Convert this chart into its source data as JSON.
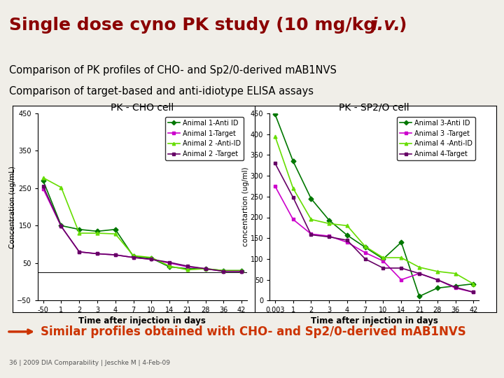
{
  "title_normal": "Single dose cyno PK study (10 mg/kg ",
  "title_italic": "i.v.",
  "title_end": ")",
  "subtitle1": "Comparison of PK profiles of CHO- and Sp2/0-derived mAB1NVS",
  "subtitle2": "Comparison of target-based and anti-idiotype ELISA assays",
  "footer": "Similar profiles obtained with CHO- and Sp2/0-derived mAB1NVS",
  "slide_note": "36 | 2009 DIA Comparability | Jeschke M | 4-Feb-09",
  "cho_title": "PK - CHO cell",
  "sp2_title": "PK - SP2/O cell",
  "cho_xlabel": "Time after injection in days",
  "sp2_xlabel": "Time after injection in days",
  "cho_ylabel": "Concentration (ug/mL)",
  "sp2_ylabel": "concentartion (ug/ml)",
  "cho_ylim": [
    -50,
    450
  ],
  "cho_yticks": [
    -50,
    50,
    150,
    250,
    350,
    450
  ],
  "sp2_ylim": [
    0,
    450
  ],
  "sp2_yticks": [
    0,
    50,
    100,
    150,
    200,
    250,
    300,
    350,
    400,
    450
  ],
  "cho_series": {
    "animal1_antiid": {
      "label": "Animal 1-Anti ID",
      "color": "#007700",
      "marker": "D",
      "y": [
        270,
        150,
        140,
        135,
        140,
        68,
        63,
        40,
        35,
        35,
        30,
        30
      ]
    },
    "animal1_target": {
      "label": "Animal 1-Target",
      "color": "#CC00CC",
      "marker": "s",
      "y": [
        248,
        148,
        80,
        75,
        72,
        65,
        60,
        50,
        40,
        35,
        28,
        28
      ]
    },
    "animal2_antiid": {
      "label": "Animal 2 -Anti-ID",
      "color": "#66DD00",
      "marker": "^",
      "y": [
        278,
        252,
        130,
        130,
        128,
        70,
        65,
        42,
        32,
        35,
        30,
        30
      ]
    },
    "animal2_target": {
      "label": "Animal 2 -Target",
      "color": "#660066",
      "marker": "s",
      "y": [
        255,
        148,
        80,
        75,
        72,
        65,
        60,
        52,
        42,
        35,
        28,
        28
      ]
    }
  },
  "sp2_series": {
    "animal3_antiid": {
      "label": "Animal 3-Anti ID",
      "color": "#007700",
      "marker": "D",
      "y": [
        448,
        335,
        245,
        193,
        157,
        128,
        100,
        140,
        10,
        30,
        35,
        40
      ]
    },
    "animal3_target": {
      "label": "Animal 3 -Target",
      "color": "#CC00CC",
      "marker": "s",
      "y": [
        275,
        195,
        160,
        155,
        140,
        115,
        95,
        50,
        65,
        50,
        30,
        20
      ]
    },
    "animal4_antiid": {
      "label": "Animal 4 -Anti-ID",
      "color": "#66DD00",
      "marker": "^",
      "y": [
        395,
        270,
        195,
        185,
        180,
        130,
        103,
        103,
        80,
        70,
        65,
        40
      ]
    },
    "animal4_target": {
      "label": "Animal 4-Target",
      "color": "#660066",
      "marker": "s",
      "y": [
        330,
        248,
        158,
        153,
        145,
        100,
        78,
        78,
        65,
        50,
        32,
        20
      ]
    }
  },
  "title_bg": "#C8A882",
  "title_color": "#8B0000",
  "bg_color": "#F0EEE8",
  "footer_color": "#CC3300",
  "separator_color": "#8B4513"
}
